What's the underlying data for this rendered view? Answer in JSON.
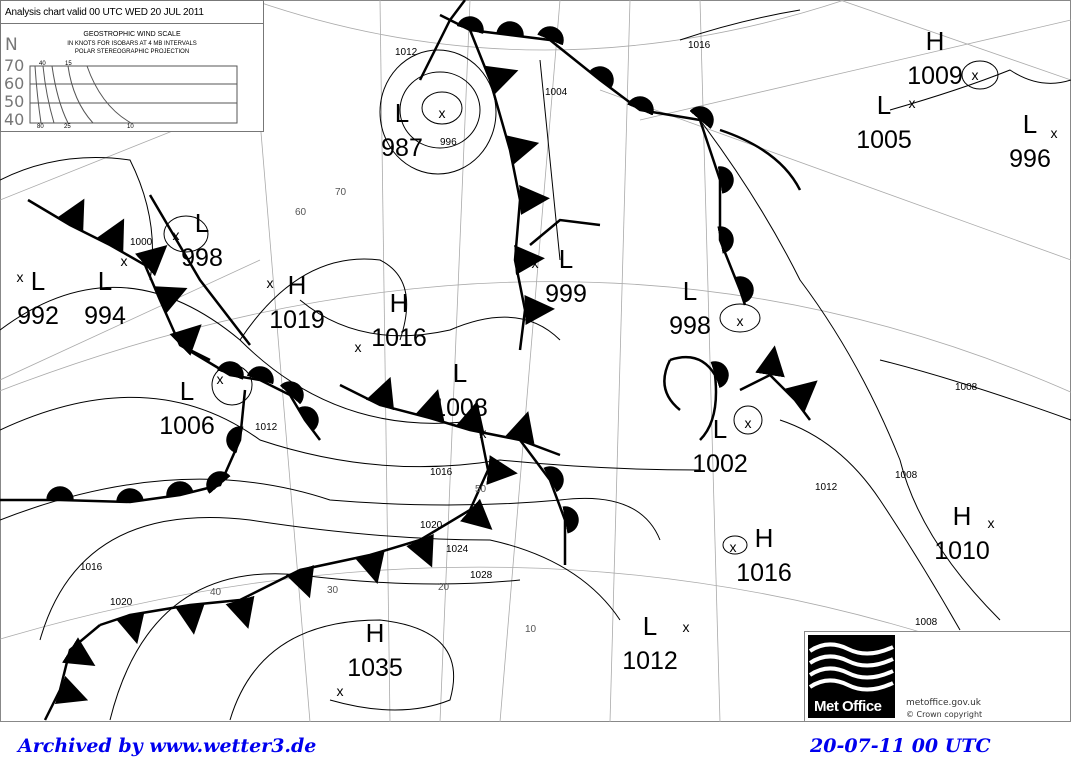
{
  "chart": {
    "title": "Analysis chart valid 00 UTC WED 20 JUL 2011",
    "legend": {
      "heading": "GEOSTROPHIC WIND SCALE",
      "line2": "IN KNOTS FOR ISOBARS AT  4 MB INTERVALS",
      "line3": "POLAR STEREOGRAPHIC PROJECTION",
      "north_label": "N",
      "latitudes": [
        "70",
        "60",
        "50",
        "40"
      ],
      "top_speeds": [
        "40",
        "15"
      ],
      "bottom_speeds": [
        "80",
        "25",
        "10"
      ]
    },
    "pressure_systems": [
      {
        "type": "H",
        "value": "1009"
      },
      {
        "type": "L",
        "value": "1005"
      },
      {
        "type": "L",
        "value": "996"
      },
      {
        "type": "L",
        "value": "987"
      },
      {
        "type": "L",
        "value": "998"
      },
      {
        "type": "L",
        "value": "992"
      },
      {
        "type": "L",
        "value": "994"
      },
      {
        "type": "H",
        "value": "1019"
      },
      {
        "type": "H",
        "value": "1016"
      },
      {
        "type": "L",
        "value": "999"
      },
      {
        "type": "L",
        "value": "998"
      },
      {
        "type": "L",
        "value": "1006"
      },
      {
        "type": "L",
        "value": "1008"
      },
      {
        "type": "L",
        "value": "1002"
      },
      {
        "type": "H",
        "value": "1016"
      },
      {
        "type": "H",
        "value": "1010"
      },
      {
        "type": "L",
        "value": "1012"
      },
      {
        "type": "H",
        "value": "1035"
      }
    ],
    "isobar_labels": [
      "1016",
      "1012",
      "1004",
      "996",
      "1000",
      "1008",
      "1012",
      "1016",
      "1020",
      "1024",
      "1028",
      "1016",
      "1020",
      "1008",
      "1008",
      "1012"
    ],
    "graticule_labels": [
      "70",
      "60",
      "50",
      "40",
      "30",
      "20",
      "10"
    ],
    "colors": {
      "lines": "#000000",
      "graticule": "#999999",
      "footer": "#0000ee"
    }
  },
  "branding": {
    "logo_text": "Met Office",
    "url": "metoffice.gov.uk",
    "copyright": "© Crown copyright"
  },
  "footer": {
    "archive": "Archived by www.wetter3.de",
    "timestamp": "20-07-11 00 UTC"
  }
}
